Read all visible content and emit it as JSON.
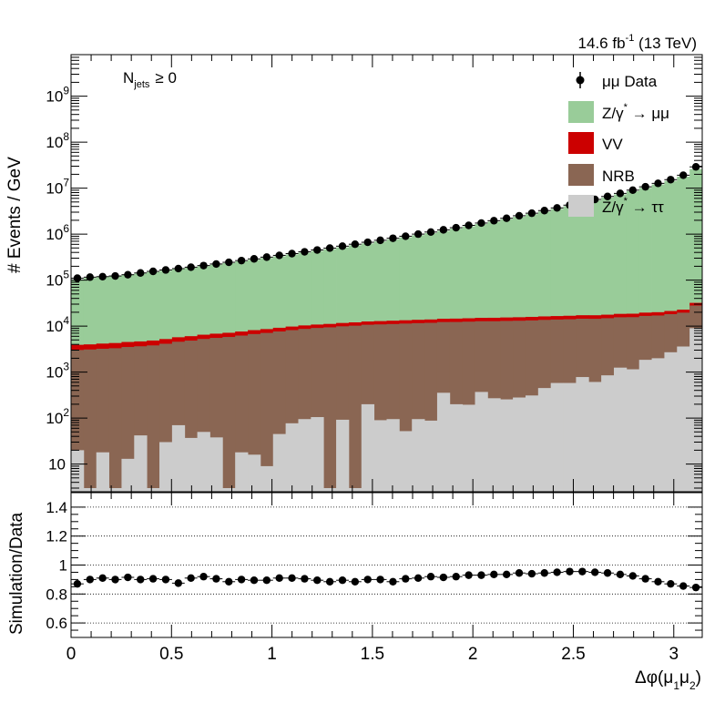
{
  "header": {
    "lumi_value": "14.6 fb",
    "lumi_exp": "-1",
    "lumi_energy": " (13 TeV)"
  },
  "annotation": {
    "njets_main": "N",
    "njets_sub": "jets",
    "njets_cond": "≥ 0"
  },
  "colors": {
    "zmumu": "#99cc99",
    "vv": "#cc0000",
    "nrb": "#8a6653",
    "ztautau": "#cccccc",
    "data": "#000000"
  },
  "chart_data": [
    {
      "type": "area",
      "title": "",
      "ylabel": "# Events / GeV",
      "yscale": "log",
      "ylim": [
        2.5,
        8000000000
      ],
      "xlim": [
        0,
        3.1416
      ],
      "y_ticks": [
        {
          "value": 10,
          "label": "10",
          "exp": ""
        },
        {
          "value": 100,
          "label": "10",
          "exp": "2"
        },
        {
          "value": 1000,
          "label": "10",
          "exp": "3"
        },
        {
          "value": 10000,
          "label": "10",
          "exp": "4"
        },
        {
          "value": 100000,
          "label": "10",
          "exp": "5"
        },
        {
          "value": 1000000,
          "label": "10",
          "exp": "6"
        },
        {
          "value": 10000000,
          "label": "10",
          "exp": "7"
        },
        {
          "value": 100000000,
          "label": "10",
          "exp": "8"
        },
        {
          "value": 1000000000,
          "label": "10",
          "exp": "9"
        }
      ],
      "legend": [
        {
          "key": "data",
          "label": "μμ Data"
        },
        {
          "key": "zmumu",
          "label": "Z/γ",
          "sup": "*",
          "suffix": " → μμ"
        },
        {
          "key": "vv",
          "label": "VV"
        },
        {
          "key": "nrb",
          "label": "NRB"
        },
        {
          "key": "ztautau",
          "label": "Z/γ",
          "sup": "*",
          "suffix": " → ττ"
        }
      ],
      "legend_position": "top-right",
      "n_bins": 50,
      "series": [
        {
          "key": "ztautau",
          "values": [
            20,
            3,
            18,
            3,
            13,
            42,
            3,
            30,
            70,
            37,
            50,
            38,
            3,
            18,
            16,
            9,
            45,
            77,
            95,
            105,
            3,
            92,
            3,
            200,
            90,
            95,
            52,
            95,
            88,
            355,
            200,
            195,
            370,
            270,
            255,
            280,
            310,
            450,
            580,
            580,
            780,
            610,
            850,
            1250,
            1150,
            1850,
            2000,
            2700,
            3600,
            9000
          ]
        },
        {
          "key": "nrb",
          "values": [
            3000,
            3100,
            3200,
            3300,
            3500,
            3600,
            3800,
            4100,
            4500,
            4800,
            5200,
            5500,
            5800,
            6200,
            6700,
            7100,
            7600,
            8100,
            8600,
            9000,
            9400,
            9800,
            10200,
            10500,
            10800,
            11000,
            11300,
            11500,
            11700,
            11900,
            12100,
            12300,
            12400,
            12500,
            12700,
            12800,
            13000,
            13200,
            13300,
            13500,
            13700,
            13800,
            14000,
            14300,
            14500,
            14800,
            15000,
            15500,
            16000,
            19000
          ]
        },
        {
          "key": "vv",
          "values": [
            900,
            900,
            950,
            980,
            1000,
            1000,
            1050,
            1100,
            1150,
            1200,
            1250,
            1300,
            1350,
            1400,
            1450,
            1500,
            1550,
            1600,
            1650,
            1700,
            1750,
            1800,
            1850,
            1900,
            1950,
            2000,
            2050,
            2100,
            2150,
            2200,
            2250,
            2300,
            2350,
            2400,
            2450,
            2500,
            2550,
            2600,
            2650,
            2700,
            2750,
            2800,
            2850,
            2900,
            2950,
            3000,
            3050,
            3100,
            3200,
            4000
          ]
        },
        {
          "key": "zmumu",
          "values": [
            100000,
            108000,
            113000,
            118000,
            125000,
            135000,
            145000,
            155000,
            168000,
            180000,
            195000,
            210000,
            228000,
            248000,
            270000,
            295000,
            320000,
            350000,
            385000,
            420000,
            460000,
            505000,
            560000,
            615000,
            680000,
            755000,
            840000,
            935000,
            1040000,
            1160000,
            1300000,
            1460000,
            1640000,
            1850000,
            2090000,
            2370000,
            2700000,
            3080000,
            3520000,
            4040000,
            4650000,
            5380000,
            6250000,
            7300000,
            8580000,
            10100000,
            12000000,
            14400000,
            17800000,
            26000000
          ]
        }
      ],
      "data_points": [
        110000,
        116000,
        119000,
        123000,
        131000,
        143000,
        155000,
        166000,
        178000,
        191000,
        207000,
        224000,
        244000,
        266000,
        290000,
        316000,
        345000,
        377000,
        412000,
        452000,
        497000,
        547000,
        603000,
        665000,
        734000,
        813000,
        900000,
        1000000,
        1110000,
        1240000,
        1380000,
        1550000,
        1740000,
        1960000,
        2210000,
        2510000,
        2850000,
        3250000,
        3720000,
        4270000,
        4910000,
        5680000,
        6590000,
        7690000,
        9040000,
        10700000,
        12700000,
        15300000,
        19100000,
        29000000
      ]
    },
    {
      "type": "scatter",
      "title": "",
      "xlabel": "Δφ(μ",
      "xlabel_sub1": "1",
      "xlabel_mid": "μ",
      "xlabel_sub2": "2",
      "xlabel_end": ")",
      "ylabel": "Simulation/Data",
      "ylim": [
        0.5,
        1.5
      ],
      "xlim": [
        0,
        3.1416
      ],
      "grid": "horizontal dotted",
      "y_ticks": [
        "0.6",
        "0.8",
        "1",
        "1.2",
        "1.4"
      ],
      "x_ticks": [
        "0",
        "0.5",
        "1",
        "1.5",
        "2",
        "2.5",
        "3"
      ],
      "values": [
        0.87,
        0.9,
        0.91,
        0.9,
        0.915,
        0.9,
        0.905,
        0.9,
        0.875,
        0.91,
        0.92,
        0.905,
        0.885,
        0.9,
        0.895,
        0.895,
        0.91,
        0.91,
        0.905,
        0.895,
        0.885,
        0.895,
        0.885,
        0.9,
        0.9,
        0.885,
        0.905,
        0.91,
        0.92,
        0.915,
        0.92,
        0.93,
        0.93,
        0.935,
        0.935,
        0.945,
        0.94,
        0.945,
        0.95,
        0.955,
        0.955,
        0.95,
        0.945,
        0.935,
        0.925,
        0.905,
        0.885,
        0.87,
        0.855,
        0.845
      ]
    }
  ]
}
